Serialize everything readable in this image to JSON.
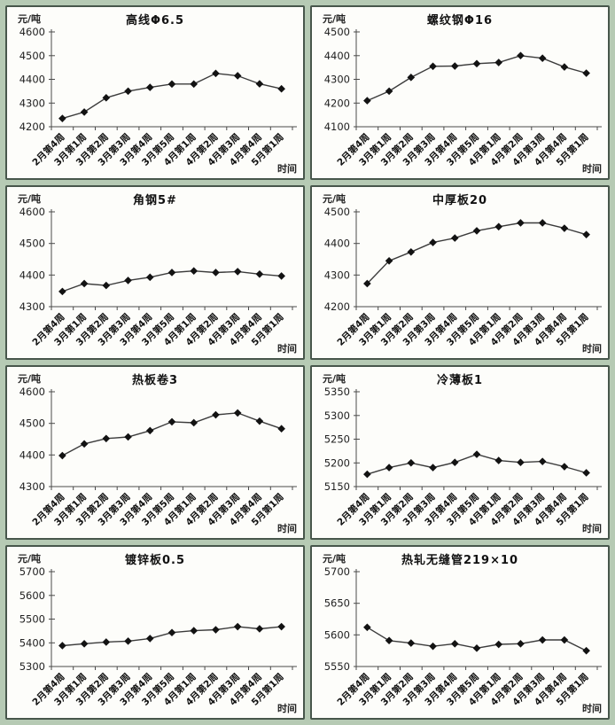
{
  "page": {
    "background_color": "#b6cab4",
    "panel_border_color": "#47564b",
    "line_color": "#3b3b3b",
    "marker_color": "#131313",
    "marker_shape": "diamond"
  },
  "chart_data": [
    {
      "type": "line",
      "title": "高线Φ6.5",
      "ylabel": "元/吨",
      "xlabel": "时间",
      "categories": [
        "2月第4周",
        "3月第1周",
        "3月第2周",
        "3月第3周",
        "3月第4周",
        "3月第5周",
        "4月第1周",
        "4月第2周",
        "4月第3周",
        "4月第4周",
        "5月第1周"
      ],
      "values": [
        4235,
        4262,
        4322,
        4350,
        4366,
        4380,
        4380,
        4425,
        4415,
        4381,
        4360
      ],
      "ylim": [
        4200,
        4600
      ],
      "ytick": 100,
      "grid": false,
      "legend": "none"
    },
    {
      "type": "line",
      "title": "螺纹钢Φ16",
      "ylabel": "元/吨",
      "xlabel": "时间",
      "categories": [
        "2月第4周",
        "3月第1周",
        "3月第2周",
        "3月第3周",
        "3月第4周",
        "3月第5周",
        "4月第1周",
        "4月第2周",
        "4月第3周",
        "4月第4周",
        "5月第1周"
      ],
      "values": [
        4210,
        4250,
        4308,
        4355,
        4356,
        4366,
        4371,
        4400,
        4389,
        4352,
        4326
      ],
      "ylim": [
        4100,
        4500
      ],
      "ytick": 100,
      "grid": false,
      "legend": "none"
    },
    {
      "type": "line",
      "title": "角钢5#",
      "ylabel": "元/吨",
      "xlabel": "时间",
      "categories": [
        "2月第4周",
        "3月第1周",
        "3月第2周",
        "3月第3周",
        "3月第4周",
        "3月第5周",
        "4月第1周",
        "4月第2周",
        "4月第3周",
        "4月第4周",
        "5月第1周"
      ],
      "values": [
        4348,
        4373,
        4367,
        4383,
        4393,
        4408,
        4413,
        4408,
        4411,
        4403,
        4397
      ],
      "ylim": [
        4300,
        4600
      ],
      "ytick": 100,
      "grid": false,
      "legend": "none"
    },
    {
      "type": "line",
      "title": "中厚板20",
      "ylabel": "元/吨",
      "xlabel": "时间",
      "categories": [
        "2月第4周",
        "3月第1周",
        "3月第2周",
        "3月第3周",
        "3月第4周",
        "3月第5周",
        "4月第1周",
        "4月第2周",
        "4月第3周",
        "4月第4周",
        "5月第1周"
      ],
      "values": [
        4273,
        4345,
        4373,
        4403,
        4417,
        4440,
        4453,
        4465,
        4465,
        4448,
        4428
      ],
      "ylim": [
        4200,
        4500
      ],
      "ytick": 100,
      "grid": false,
      "legend": "none"
    },
    {
      "type": "line",
      "title": "热板卷3",
      "ylabel": "元/吨",
      "xlabel": "时间",
      "categories": [
        "2月第4周",
        "3月第1周",
        "3月第2周",
        "3月第3周",
        "3月第4周",
        "3月第5周",
        "4月第1周",
        "4月第2周",
        "4月第3周",
        "4月第4周",
        "5月第1周"
      ],
      "values": [
        4398,
        4435,
        4452,
        4457,
        4477,
        4505,
        4502,
        4527,
        4533,
        4507,
        4483
      ],
      "ylim": [
        4300,
        4600
      ],
      "ytick": 100,
      "grid": false,
      "legend": "none"
    },
    {
      "type": "line",
      "title": "冷薄板1",
      "ylabel": "元/吨",
      "xlabel": "时间",
      "categories": [
        "2月第4周",
        "3月第1周",
        "3月第2周",
        "3月第3周",
        "3月第4周",
        "3月第5周",
        "4月第1周",
        "4月第2周",
        "4月第3周",
        "4月第4周",
        "5月第1周"
      ],
      "values": [
        5176,
        5190,
        5200,
        5190,
        5201,
        5218,
        5205,
        5201,
        5203,
        5192,
        5179
      ],
      "ylim": [
        5150,
        5350
      ],
      "ytick": 50,
      "grid": false,
      "legend": "none"
    },
    {
      "type": "line",
      "title": "镀锌板0.5",
      "ylabel": "元/吨",
      "xlabel": "时间",
      "categories": [
        "2月第4周",
        "3月第1周",
        "3月第2周",
        "3月第3周",
        "3月第4周",
        "3月第5周",
        "4月第1周",
        "4月第2周",
        "4月第3周",
        "4月第4周",
        "5月第1周"
      ],
      "values": [
        5388,
        5396,
        5403,
        5407,
        5418,
        5443,
        5451,
        5455,
        5468,
        5459,
        5468
      ],
      "ylim": [
        5300,
        5700
      ],
      "ytick": 100,
      "grid": false,
      "legend": "none"
    },
    {
      "type": "line",
      "title": "热轧无缝管219×10",
      "ylabel": "元/吨",
      "xlabel": "时间",
      "categories": [
        "2月第4周",
        "3月第1周",
        "3月第2周",
        "3月第3周",
        "3月第4周",
        "3月第5周",
        "4月第1周",
        "4月第2周",
        "4月第3周",
        "4月第4周",
        "5月第1周"
      ],
      "values": [
        5612,
        5591,
        5587,
        5582,
        5586,
        5579,
        5585,
        5586,
        5592,
        5592,
        5575
      ],
      "ylim": [
        5550,
        5700
      ],
      "ytick": 50,
      "grid": false,
      "legend": "none"
    }
  ]
}
